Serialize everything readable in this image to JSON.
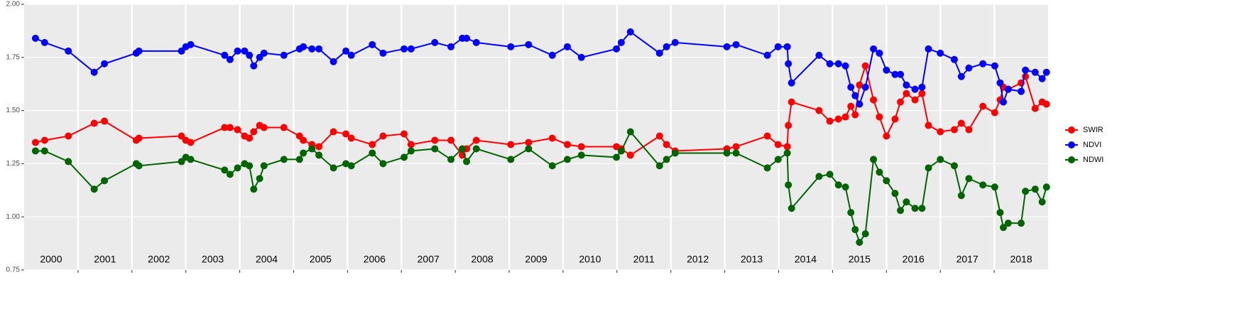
{
  "chart_data": {
    "type": "line",
    "years": [
      "2000",
      "2001",
      "2002",
      "2003",
      "2004",
      "2005",
      "2006",
      "2007",
      "2008",
      "2009",
      "2010",
      "2011",
      "2012",
      "2013",
      "2014",
      "2015",
      "2016",
      "2017",
      "2018"
    ],
    "x": [
      2000.21,
      2000.38,
      2000.82,
      2001.3,
      2001.49,
      2002.08,
      2002.13,
      2002.92,
      2003.0,
      2003.09,
      2003.72,
      2003.82,
      2003.96,
      2004.09,
      2004.18,
      2004.26,
      2004.37,
      2004.45,
      2004.82,
      2005.11,
      2005.18,
      2005.34,
      2005.47,
      2005.74,
      2005.97,
      2006.07,
      2006.46,
      2006.66,
      2007.05,
      2007.18,
      2007.62,
      2007.92,
      2008.13,
      2008.21,
      2008.39,
      2009.03,
      2009.36,
      2009.8,
      2010.08,
      2010.34,
      2010.99,
      2011.08,
      2011.25,
      2011.79,
      2011.92,
      2012.08,
      2013.04,
      2013.21,
      2013.79,
      2013.99,
      2014.16,
      2014.18,
      2014.24,
      2014.75,
      2014.95,
      2015.11,
      2015.24,
      2015.34,
      2015.42,
      2015.5,
      2015.61,
      2015.76,
      2015.87,
      2016.0,
      2016.16,
      2016.26,
      2016.37,
      2016.53,
      2016.66,
      2016.78,
      2017.0,
      2017.26,
      2017.39,
      2017.53,
      2017.79,
      2018.01,
      2018.11,
      2018.17,
      2018.26,
      2018.5,
      2018.58,
      2018.76,
      2018.89,
      2018.97
    ],
    "series": [
      {
        "name": "SWIR",
        "color": "#ff0000",
        "values": [
          1.35,
          1.36,
          1.38,
          1.44,
          1.45,
          1.36,
          1.37,
          1.38,
          1.36,
          1.35,
          1.42,
          1.42,
          1.41,
          1.38,
          1.37,
          1.4,
          1.43,
          1.42,
          1.42,
          1.38,
          1.36,
          1.34,
          1.33,
          1.4,
          1.39,
          1.37,
          1.34,
          1.38,
          1.39,
          1.34,
          1.36,
          1.36,
          1.29,
          1.32,
          1.36,
          1.34,
          1.35,
          1.37,
          1.34,
          1.33,
          1.33,
          1.32,
          1.29,
          1.38,
          1.34,
          1.31,
          1.32,
          1.33,
          1.38,
          1.34,
          1.33,
          1.43,
          1.54,
          1.5,
          1.45,
          1.46,
          1.47,
          1.52,
          1.48,
          1.62,
          1.71,
          1.55,
          1.47,
          1.38,
          1.46,
          1.54,
          1.58,
          1.55,
          1.58,
          1.43,
          1.4,
          1.41,
          1.44,
          1.41,
          1.52,
          1.49,
          1.55,
          1.61,
          1.6,
          1.63,
          1.66,
          1.51,
          1.54,
          1.53
        ]
      },
      {
        "name": "NDVI",
        "color": "#0000ff",
        "values": [
          1.84,
          1.82,
          1.78,
          1.68,
          1.72,
          1.77,
          1.78,
          1.78,
          1.8,
          1.81,
          1.76,
          1.74,
          1.78,
          1.78,
          1.76,
          1.71,
          1.75,
          1.77,
          1.76,
          1.79,
          1.8,
          1.79,
          1.79,
          1.73,
          1.78,
          1.76,
          1.81,
          1.77,
          1.79,
          1.79,
          1.82,
          1.8,
          1.84,
          1.84,
          1.82,
          1.8,
          1.81,
          1.76,
          1.8,
          1.75,
          1.79,
          1.82,
          1.87,
          1.77,
          1.8,
          1.82,
          1.8,
          1.81,
          1.76,
          1.8,
          1.8,
          1.72,
          1.63,
          1.76,
          1.72,
          1.72,
          1.71,
          1.61,
          1.57,
          1.53,
          1.61,
          1.79,
          1.77,
          1.69,
          1.67,
          1.67,
          1.62,
          1.6,
          1.61,
          1.79,
          1.77,
          1.74,
          1.66,
          1.7,
          1.72,
          1.71,
          1.63,
          1.54,
          1.6,
          1.59,
          1.69,
          1.68,
          1.65,
          1.68
        ]
      },
      {
        "name": "NDWI",
        "color": "#006400",
        "values": [
          1.31,
          1.31,
          1.26,
          1.13,
          1.17,
          1.25,
          1.24,
          1.26,
          1.28,
          1.27,
          1.22,
          1.2,
          1.23,
          1.25,
          1.24,
          1.13,
          1.18,
          1.24,
          1.27,
          1.27,
          1.3,
          1.32,
          1.29,
          1.23,
          1.25,
          1.24,
          1.3,
          1.25,
          1.28,
          1.31,
          1.32,
          1.27,
          1.32,
          1.26,
          1.32,
          1.27,
          1.32,
          1.24,
          1.27,
          1.29,
          1.28,
          1.31,
          1.4,
          1.24,
          1.27,
          1.3,
          1.3,
          1.3,
          1.23,
          1.27,
          1.3,
          1.15,
          1.04,
          1.19,
          1.2,
          1.15,
          1.14,
          1.02,
          0.94,
          0.88,
          0.92,
          1.27,
          1.21,
          1.17,
          1.11,
          1.03,
          1.07,
          1.04,
          1.04,
          1.23,
          1.27,
          1.24,
          1.1,
          1.18,
          1.15,
          1.14,
          1.02,
          0.95,
          0.97,
          0.97,
          1.12,
          1.13,
          1.07,
          1.14
        ]
      }
    ],
    "xlim": [
      2000,
      2019
    ],
    "xticks": [
      2001,
      2002,
      2003,
      2004,
      2005,
      2006,
      2007,
      2008,
      2009,
      2010,
      2011,
      2012,
      2013,
      2014,
      2015,
      2016,
      2017,
      2018
    ],
    "ylim": [
      0.75,
      2.0
    ],
    "yticks": [
      {
        "value": 0.75,
        "label": "0.75"
      },
      {
        "value": 1.0,
        "label": "1.00"
      },
      {
        "value": 1.25,
        "label": "1.25"
      },
      {
        "value": 1.5,
        "label": "1.50"
      },
      {
        "value": 1.75,
        "label": "1.75"
      },
      {
        "value": 2.0,
        "label": "2.00"
      }
    ],
    "grid": true
  }
}
